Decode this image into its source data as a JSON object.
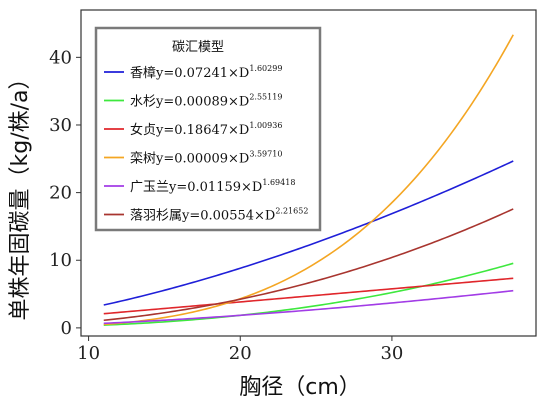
{
  "chart_data": {
    "type": "line",
    "xlabel": "胸径（cm）",
    "ylabel": "单株年固碳量（kg/株/a）",
    "xlim": [
      9.5,
      39.5
    ],
    "ylim": [
      -1.2,
      47
    ],
    "x_ticks": [
      10,
      20,
      30
    ],
    "y_ticks": [
      0,
      10,
      20,
      30,
      40
    ],
    "grid": false,
    "legend_title": "碳汇模型",
    "legend_position": "top-left",
    "x_range": [
      11,
      38
    ],
    "series": [
      {
        "name": "香樟",
        "formula_prefix": "y=0.07241×D",
        "exponent": "1.60299",
        "a": 0.07241,
        "b": 1.60299,
        "color": "#1f1fd8"
      },
      {
        "name": "水杉",
        "formula_prefix": "y=0.00089×D",
        "exponent": "2.55119",
        "a": 0.00089,
        "b": 2.55119,
        "color": "#3ee83e"
      },
      {
        "name": "女贞",
        "formula_prefix": "y=0.18647×D",
        "exponent": "1.00936",
        "a": 0.18647,
        "b": 1.00936,
        "color": "#e0262b"
      },
      {
        "name": "栾树",
        "formula_prefix": "y=0.00009×D",
        "exponent": "3.59710",
        "a": 9e-05,
        "b": 3.5971,
        "color": "#f4a623"
      },
      {
        "name": "广玉兰",
        "formula_prefix": "y=0.01159×D",
        "exponent": "1.69418",
        "a": 0.01159,
        "b": 1.69418,
        "color": "#a23ce6"
      },
      {
        "name": "落羽杉属",
        "formula_prefix": "y=0.00554×D",
        "exponent": "2.21652",
        "a": 0.00554,
        "b": 2.21652,
        "color": "#a8352f"
      }
    ]
  }
}
